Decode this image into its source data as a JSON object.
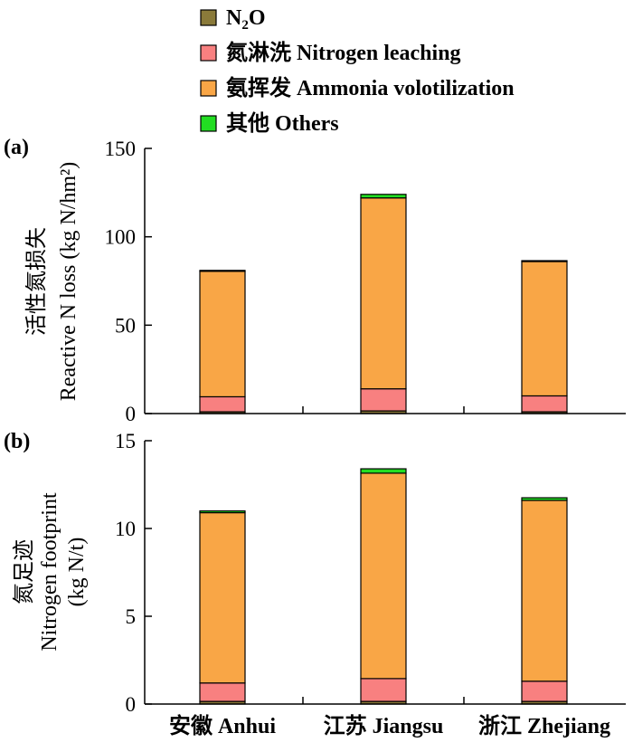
{
  "chart_data": [
    {
      "type": "bar",
      "stacked": true,
      "panel_label": "(a)",
      "ylabel_zh": "活性氮损失",
      "ylabel_en": "Reactive N loss (kg N/hm²)",
      "ylim": [
        0,
        150
      ],
      "yticks": [
        0,
        50,
        100,
        150
      ],
      "categories": [
        "安徽 Anhui",
        "江苏 Jiangsu",
        "浙江 Zhejiang"
      ],
      "series": [
        {
          "name": "N₂O",
          "color": "#8a7a3a",
          "values": [
            1,
            1.5,
            1
          ]
        },
        {
          "name": "氮淋洗 Nitrogen leaching",
          "color": "#f88080",
          "values": [
            8.5,
            12.5,
            9
          ]
        },
        {
          "name": "氨挥发 Ammonia volotilization",
          "color": "#f9a646",
          "values": [
            71,
            108,
            76
          ]
        },
        {
          "name": "其他 Others",
          "color": "#22dd22",
          "values": [
            0.5,
            2,
            0.5
          ]
        }
      ]
    },
    {
      "type": "bar",
      "stacked": true,
      "panel_label": "(b)",
      "ylabel_zh": "氮足迹",
      "ylabel_en_1": "Nitrogen footprint",
      "ylabel_en_2": "(kg N/t)",
      "ylim": [
        0,
        15
      ],
      "yticks": [
        0,
        5,
        10,
        15
      ],
      "categories": [
        "安徽 Anhui",
        "江苏 Jiangsu",
        "浙江 Zhejiang"
      ],
      "series": [
        {
          "name": "N₂O",
          "color": "#8a7a3a",
          "values": [
            0.15,
            0.15,
            0.15
          ]
        },
        {
          "name": "氮淋洗 Nitrogen leaching",
          "color": "#f88080",
          "values": [
            1.05,
            1.3,
            1.15
          ]
        },
        {
          "name": "氨挥发 Ammonia volotilization",
          "color": "#f9a646",
          "values": [
            9.7,
            11.7,
            10.3
          ]
        },
        {
          "name": "其他 Others",
          "color": "#22dd22",
          "values": [
            0.1,
            0.25,
            0.15
          ]
        }
      ]
    }
  ],
  "legend": [
    {
      "base": "N",
      "sub": "2",
      "tail": "O",
      "color": "#8a7a3a"
    },
    {
      "label": "氮淋洗 Nitrogen leaching",
      "color": "#f88080"
    },
    {
      "label": "氨挥发 Ammonia volotilization",
      "color": "#f9a646"
    },
    {
      "label": "其他 Others",
      "color": "#22dd22"
    }
  ]
}
